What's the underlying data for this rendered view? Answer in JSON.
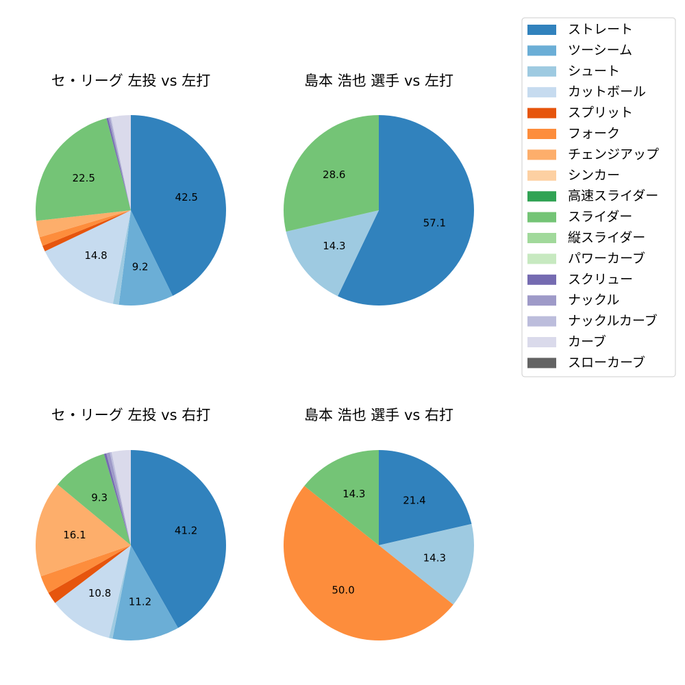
{
  "legend": {
    "placement": "top-right",
    "entries": [
      {
        "label": "ストレート",
        "color": "#3182bd"
      },
      {
        "label": "ツーシーム",
        "color": "#6baed6"
      },
      {
        "label": "シュート",
        "color": "#9ecae1"
      },
      {
        "label": "カットボール",
        "color": "#c6dbef"
      },
      {
        "label": "スプリット",
        "color": "#e6550d"
      },
      {
        "label": "フォーク",
        "color": "#fd8d3c"
      },
      {
        "label": "チェンジアップ",
        "color": "#fdae6b"
      },
      {
        "label": "シンカー",
        "color": "#fdd0a2"
      },
      {
        "label": "高速スライダー",
        "color": "#31a354"
      },
      {
        "label": "スライダー",
        "color": "#74c476"
      },
      {
        "label": "縦スライダー",
        "color": "#a1d99b"
      },
      {
        "label": "パワーカーブ",
        "color": "#c7e9c0"
      },
      {
        "label": "スクリュー",
        "color": "#756bb1"
      },
      {
        "label": "ナックル",
        "color": "#9e9ac8"
      },
      {
        "label": "ナックルカーブ",
        "color": "#bcbddc"
      },
      {
        "label": "カーブ",
        "color": "#dadaeb"
      },
      {
        "label": "スローカーブ",
        "color": "#636363"
      }
    ]
  },
  "chart_data": [
    {
      "type": "pie",
      "title": "セ・リーグ 左投 vs 左打",
      "slices": [
        {
          "label": "ストレート",
          "value": 42.5,
          "display": "42.5"
        },
        {
          "label": "ツーシーム",
          "value": 9.2,
          "display": "9.2"
        },
        {
          "label": "シュート",
          "value": 1.0,
          "display": ""
        },
        {
          "label": "カットボール",
          "value": 14.8,
          "display": "14.8"
        },
        {
          "label": "スプリット",
          "value": 1.0,
          "display": ""
        },
        {
          "label": "フォーク",
          "value": 1.5,
          "display": ""
        },
        {
          "label": "チェンジアップ",
          "value": 2.8,
          "display": ""
        },
        {
          "label": "スライダー",
          "value": 22.5,
          "display": "22.5"
        },
        {
          "label": "スクリュー",
          "value": 0.3,
          "display": ""
        },
        {
          "label": "ナックル",
          "value": 0.3,
          "display": ""
        },
        {
          "label": "ナックルカーブ",
          "value": 0.2,
          "display": ""
        },
        {
          "label": "カーブ",
          "value": 3.3,
          "display": ""
        }
      ]
    },
    {
      "type": "pie",
      "title": "島本 浩也 選手 vs 左打",
      "slices": [
        {
          "label": "ストレート",
          "value": 57.1,
          "display": "57.1"
        },
        {
          "label": "シュート",
          "value": 14.3,
          "display": "14.3"
        },
        {
          "label": "スライダー",
          "value": 28.6,
          "display": "28.6"
        }
      ]
    },
    {
      "type": "pie",
      "title": "セ・リーグ 左投 vs 右打",
      "slices": [
        {
          "label": "ストレート",
          "value": 41.2,
          "display": "41.2"
        },
        {
          "label": "ツーシーム",
          "value": 11.2,
          "display": "11.2"
        },
        {
          "label": "シュート",
          "value": 0.6,
          "display": ""
        },
        {
          "label": "カットボール",
          "value": 10.8,
          "display": "10.8"
        },
        {
          "label": "スプリット",
          "value": 2.0,
          "display": ""
        },
        {
          "label": "フォーク",
          "value": 3.0,
          "display": ""
        },
        {
          "label": "チェンジアップ",
          "value": 16.1,
          "display": "16.1"
        },
        {
          "label": "スライダー",
          "value": 9.3,
          "display": "9.3"
        },
        {
          "label": "スクリュー",
          "value": 0.4,
          "display": ""
        },
        {
          "label": "ナックル",
          "value": 0.6,
          "display": ""
        },
        {
          "label": "ナックルカーブ",
          "value": 0.3,
          "display": ""
        },
        {
          "label": "カーブ",
          "value": 3.2,
          "display": ""
        }
      ]
    },
    {
      "type": "pie",
      "title": "島本 浩也 選手 vs 右打",
      "slices": [
        {
          "label": "ストレート",
          "value": 21.4,
          "display": "21.4"
        },
        {
          "label": "シュート",
          "value": 14.3,
          "display": "14.3"
        },
        {
          "label": "フォーク",
          "value": 50.0,
          "display": "50.0"
        },
        {
          "label": "スライダー",
          "value": 14.3,
          "display": "14.3"
        }
      ]
    }
  ]
}
